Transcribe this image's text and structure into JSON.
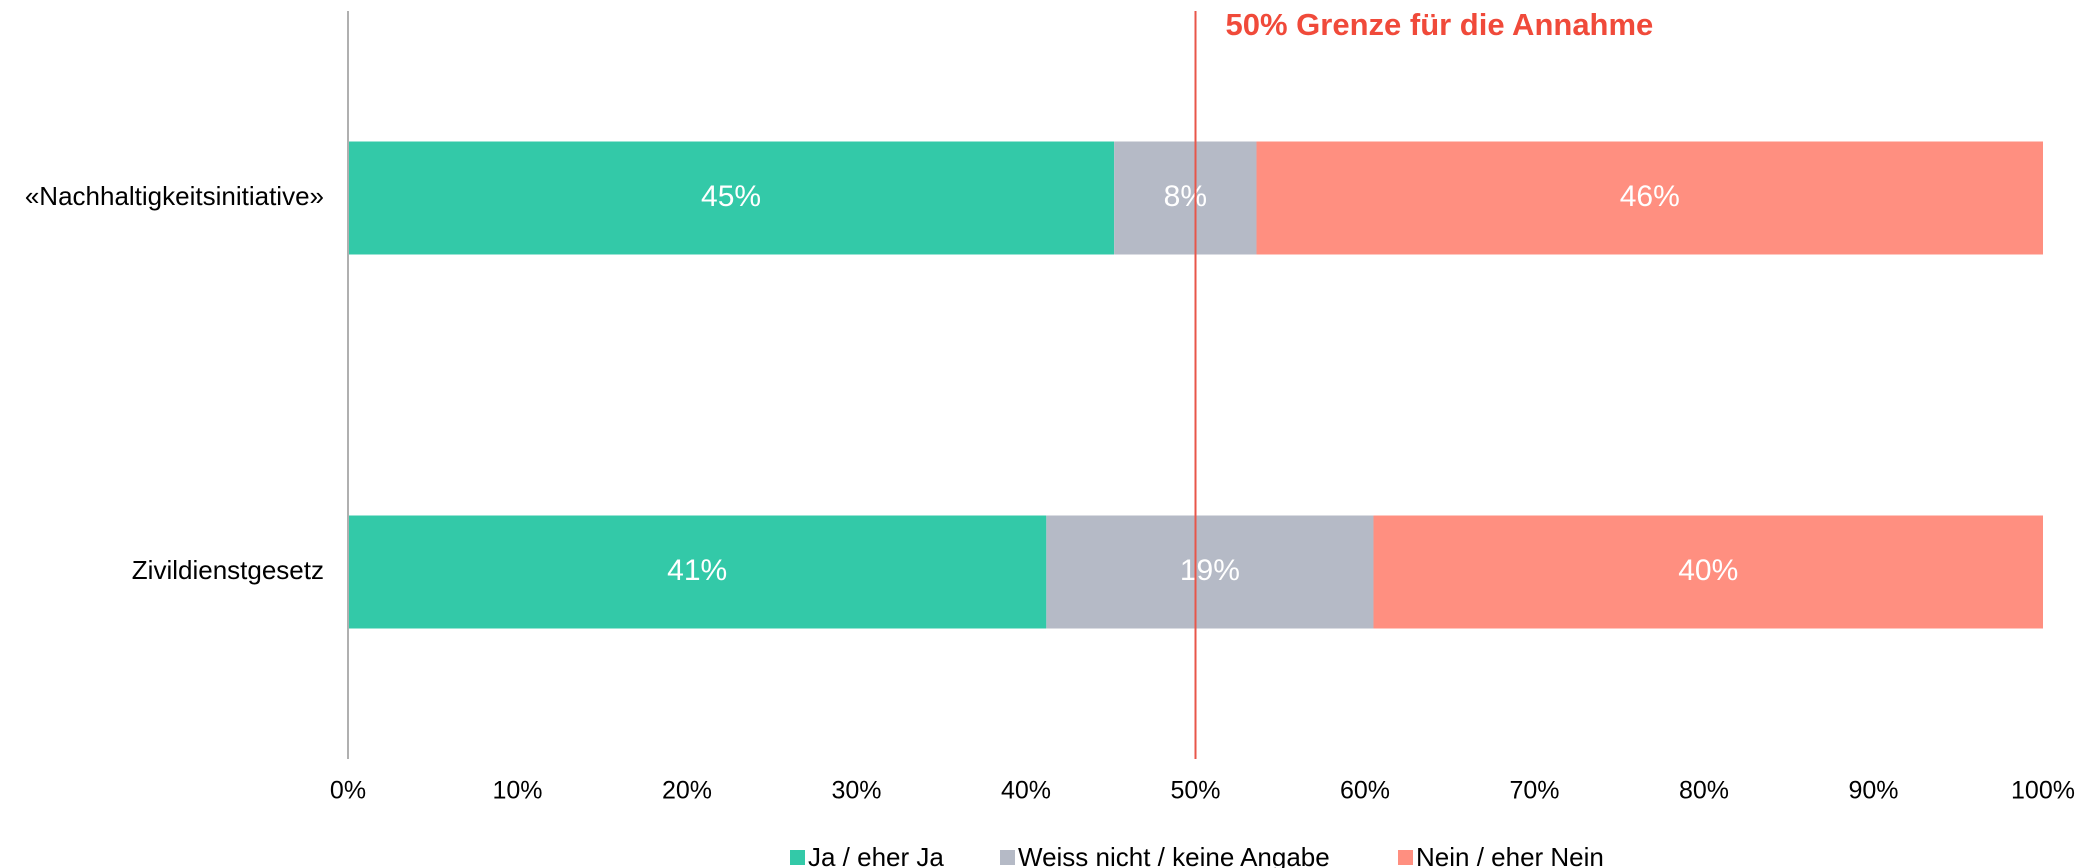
{
  "chart_data": {
    "type": "stacked-bar-horizontal",
    "categories": [
      "«Nachhaltigkeitsinitiative»",
      "Zivildienstgesetz"
    ],
    "series": [
      {
        "name": "Ja / eher Ja",
        "color": "#33c9a8",
        "values": [
          45.2,
          41.2
        ],
        "value_labels": [
          "45%",
          "41%"
        ]
      },
      {
        "name": "Weiss nicht / keine Angabe",
        "color": "#b5bac6",
        "values": [
          8.4,
          19.3
        ],
        "value_labels": [
          "8%",
          "19%"
        ]
      },
      {
        "name": "Nein / eher Nein",
        "color": "#ff8f80",
        "values": [
          46.4,
          39.5
        ],
        "value_labels": [
          "46%",
          "40%"
        ]
      }
    ],
    "xlim": [
      0,
      100
    ],
    "xticks": [
      {
        "value": 0,
        "label": "0%"
      },
      {
        "value": 10,
        "label": "10%"
      },
      {
        "value": 20,
        "label": "20%"
      },
      {
        "value": 30,
        "label": "30%"
      },
      {
        "value": 40,
        "label": "40%"
      },
      {
        "value": 50,
        "label": "50%"
      },
      {
        "value": 60,
        "label": "60%"
      },
      {
        "value": 70,
        "label": "70%"
      },
      {
        "value": 80,
        "label": "80%"
      },
      {
        "value": 90,
        "label": "90%"
      },
      {
        "value": 100,
        "label": "100%"
      }
    ],
    "reference_line": {
      "value": 50,
      "label": "50% Grenze für die Annahme",
      "color": "#e8564a"
    },
    "legend": "bottom"
  }
}
